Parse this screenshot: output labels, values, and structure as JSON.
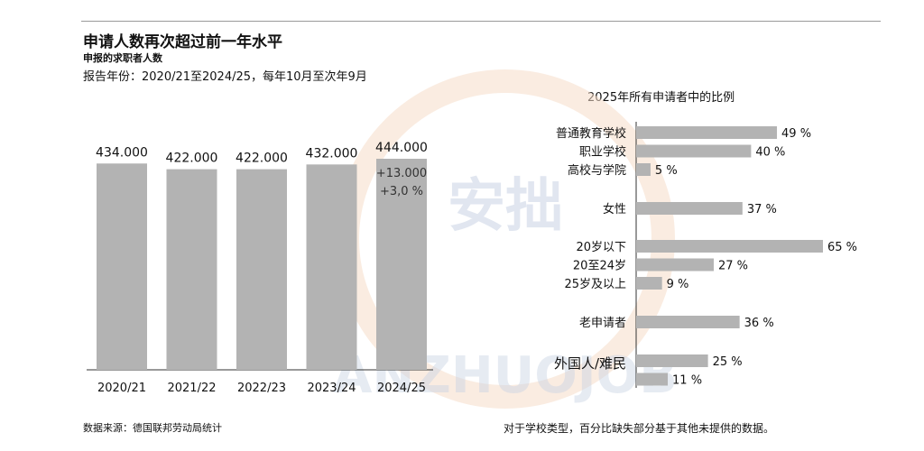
{
  "header": {
    "title": "申请人数再次超过前一年水平",
    "subtitle": "申报的求职者人数",
    "period": "报告年份：2020/21至2024/25，每年10月至次年9月"
  },
  "footer": {
    "source": "数据来源：德国联邦劳动局统计",
    "note": "对于学校类型，百分比缺失部分基于其他未提供的数据。"
  },
  "watermark": {
    "cn": "安拙",
    "en": "ANZHUOJOB"
  },
  "colors": {
    "bar": "#b3b3b3",
    "text": "#111111",
    "axis": "#333333"
  },
  "chart_data": [
    {
      "type": "bar",
      "categories": [
        "2020/21",
        "2021/22",
        "2022/23",
        "2023/24",
        "2024/25"
      ],
      "values": [
        434000,
        422000,
        422000,
        432000,
        444000
      ],
      "value_labels": [
        "434.000",
        "422.000",
        "422.000",
        "432.000",
        "444.000"
      ],
      "annotations": [
        {
          "category": "2024/25",
          "lines": [
            "+13.000",
            "+3,0 %"
          ]
        }
      ],
      "ylim": [
        0,
        444000
      ]
    },
    {
      "type": "bar",
      "orientation": "horizontal",
      "title": "2025年所有申请者中的比例",
      "groups": [
        {
          "label": "",
          "rows": [
            {
              "label": "普通教育学校",
              "value": 49
            },
            {
              "label": "职业学校",
              "value": 40
            },
            {
              "label": "高校与学院",
              "value": 5
            }
          ]
        },
        {
          "label": "",
          "rows": [
            {
              "label": "女性",
              "value": 37
            }
          ]
        },
        {
          "label": "",
          "rows": [
            {
              "label": "20岁以下",
              "value": 65
            },
            {
              "label": "20至24岁",
              "value": 27
            },
            {
              "label": "25岁及以上",
              "value": 9
            }
          ]
        },
        {
          "label": "",
          "rows": [
            {
              "label": "老申请者",
              "value": 36
            }
          ]
        },
        {
          "label": "外国人/难民",
          "rows": [
            {
              "label": "",
              "value": 25
            },
            {
              "label": "",
              "value": 11
            }
          ]
        }
      ],
      "unit": "%",
      "xlim": [
        0,
        65
      ]
    }
  ]
}
